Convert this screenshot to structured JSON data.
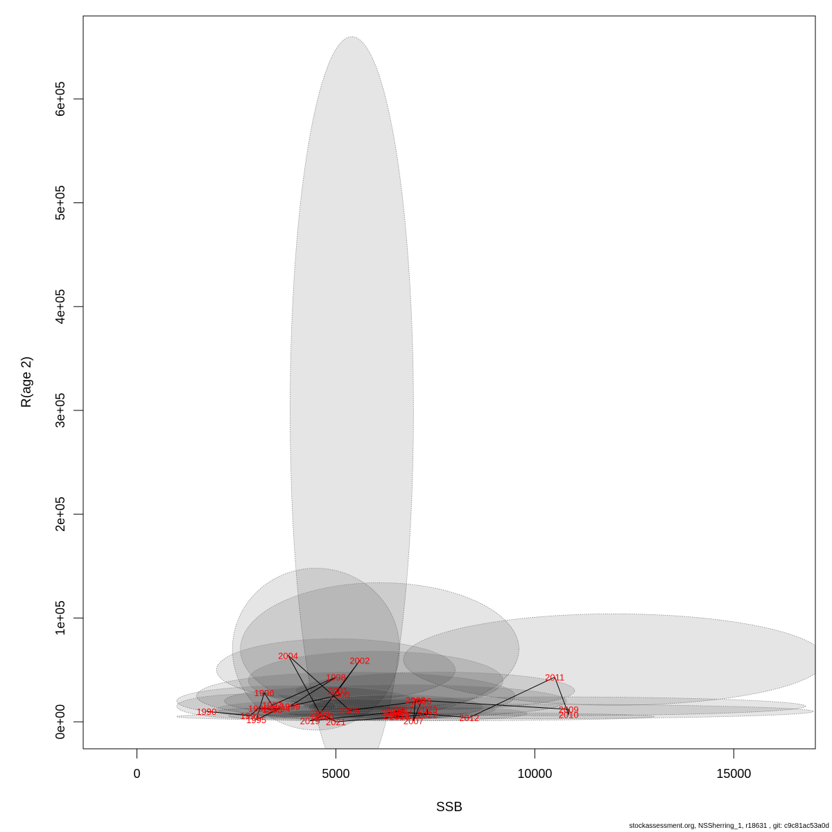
{
  "chart_data": {
    "type": "scatter",
    "title": "",
    "xlabel": "SSB",
    "ylabel": "R(age 2)",
    "xlim": [
      -1350,
      17050
    ],
    "ylim": [
      -26000,
      680000
    ],
    "x_ticks": [
      {
        "value": 0,
        "label": "0"
      },
      {
        "value": 5000,
        "label": "5000"
      },
      {
        "value": 10000,
        "label": "10000"
      },
      {
        "value": 15000,
        "label": "15000"
      }
    ],
    "y_ticks": [
      {
        "value": 0,
        "label": "0e+00"
      },
      {
        "value": 100000,
        "label": "1e+05"
      },
      {
        "value": 200000,
        "label": "2e+05"
      },
      {
        "value": 300000,
        "label": "3e+05"
      },
      {
        "value": 400000,
        "label": "4e+05"
      },
      {
        "value": 500000,
        "label": "5e+05"
      },
      {
        "value": 600000,
        "label": "6e+05"
      }
    ],
    "points": [
      {
        "year": "1990",
        "x": 1750,
        "y": 10000
      },
      {
        "year": "1991",
        "x": 2850,
        "y": 6000
      },
      {
        "year": "1992",
        "x": 3050,
        "y": 13000
      },
      {
        "year": "1993",
        "x": 3400,
        "y": 12000
      },
      {
        "year": "1994",
        "x": 3600,
        "y": 13000
      },
      {
        "year": "1995",
        "x": 3000,
        "y": 2000
      },
      {
        "year": "1996",
        "x": 3200,
        "y": 28000
      },
      {
        "year": "1997",
        "x": 3400,
        "y": 16000
      },
      {
        "year": "1998",
        "x": 5000,
        "y": 43000
      },
      {
        "year": "1999",
        "x": 3850,
        "y": 15000
      },
      {
        "year": "2000",
        "x": 5100,
        "y": 26000
      },
      {
        "year": "2001",
        "x": 5050,
        "y": 30000
      },
      {
        "year": "2002",
        "x": 5600,
        "y": 59000
      },
      {
        "year": "2003",
        "x": 4600,
        "y": 8000
      },
      {
        "year": "2004",
        "x": 3800,
        "y": 64000
      },
      {
        "year": "2005",
        "x": 5350,
        "y": 11000
      },
      {
        "year": "2006",
        "x": 7150,
        "y": 20000
      },
      {
        "year": "2007",
        "x": 6950,
        "y": 1000
      },
      {
        "year": "2008",
        "x": 7000,
        "y": 21000
      },
      {
        "year": "2009",
        "x": 10850,
        "y": 12000
      },
      {
        "year": "2010",
        "x": 10850,
        "y": 7000
      },
      {
        "year": "2011",
        "x": 10500,
        "y": 43000
      },
      {
        "year": "2012",
        "x": 8350,
        "y": 4000
      },
      {
        "year": "2013",
        "x": 6500,
        "y": 10000
      },
      {
        "year": "2014",
        "x": 6600,
        "y": 7000
      },
      {
        "year": "2015",
        "x": 6450,
        "y": 6000
      },
      {
        "year": "2016",
        "x": 6600,
        "y": 5000
      },
      {
        "year": "2017",
        "x": 6700,
        "y": 12000
      },
      {
        "year": "2018",
        "x": 6400,
        "y": 9000
      },
      {
        "year": "2019",
        "x": 4350,
        "y": 1000
      },
      {
        "year": "2020",
        "x": 4700,
        "y": 6000
      },
      {
        "year": "2021",
        "x": 5000,
        "y": 0
      },
      {
        "year": "2022",
        "x": 7300,
        "y": 7000
      },
      {
        "year": "2023",
        "x": 7300,
        "y": 12000
      }
    ],
    "ellipses": [
      {
        "cx": 5400,
        "cy": 300000,
        "rx": 1550,
        "ry": 360000
      },
      {
        "cx": 4500,
        "cy": 70000,
        "rx": 2100,
        "ry": 78000
      },
      {
        "cx": 6100,
        "cy": 70000,
        "rx": 3500,
        "ry": 64000
      },
      {
        "cx": 12000,
        "cy": 60000,
        "rx": 5300,
        "ry": 44000
      },
      {
        "cx": 5000,
        "cy": 50000,
        "rx": 3000,
        "ry": 30000
      },
      {
        "cx": 6000,
        "cy": 40000,
        "rx": 3200,
        "ry": 28000
      },
      {
        "cx": 5500,
        "cy": 25000,
        "rx": 4000,
        "ry": 23000
      },
      {
        "cx": 7500,
        "cy": 30000,
        "rx": 3500,
        "ry": 18000
      },
      {
        "cx": 6500,
        "cy": 20000,
        "rx": 4300,
        "ry": 16000
      },
      {
        "cx": 10500,
        "cy": 15000,
        "rx": 6300,
        "ry": 9000
      },
      {
        "cx": 9500,
        "cy": 10000,
        "rx": 7500,
        "ry": 7000
      },
      {
        "cx": 4000,
        "cy": 20000,
        "rx": 3000,
        "ry": 15000
      },
      {
        "cx": 3000,
        "cy": 15000,
        "rx": 2000,
        "ry": 12000
      },
      {
        "cx": 5500,
        "cy": 12000,
        "rx": 3500,
        "ry": 10000
      },
      {
        "cx": 6800,
        "cy": 8000,
        "rx": 3000,
        "ry": 7000
      },
      {
        "cx": 4800,
        "cy": 6000,
        "rx": 2500,
        "ry": 5000
      },
      {
        "cx": 6500,
        "cy": 14000,
        "rx": 2200,
        "ry": 12000
      },
      {
        "cx": 7000,
        "cy": 5000,
        "rx": 6000,
        "ry": 4000
      }
    ],
    "grid": false,
    "legend": "none"
  },
  "footer_text": "stockassessment.org, NSSherring_1, r18631 , git: c9c81ac53a0d"
}
